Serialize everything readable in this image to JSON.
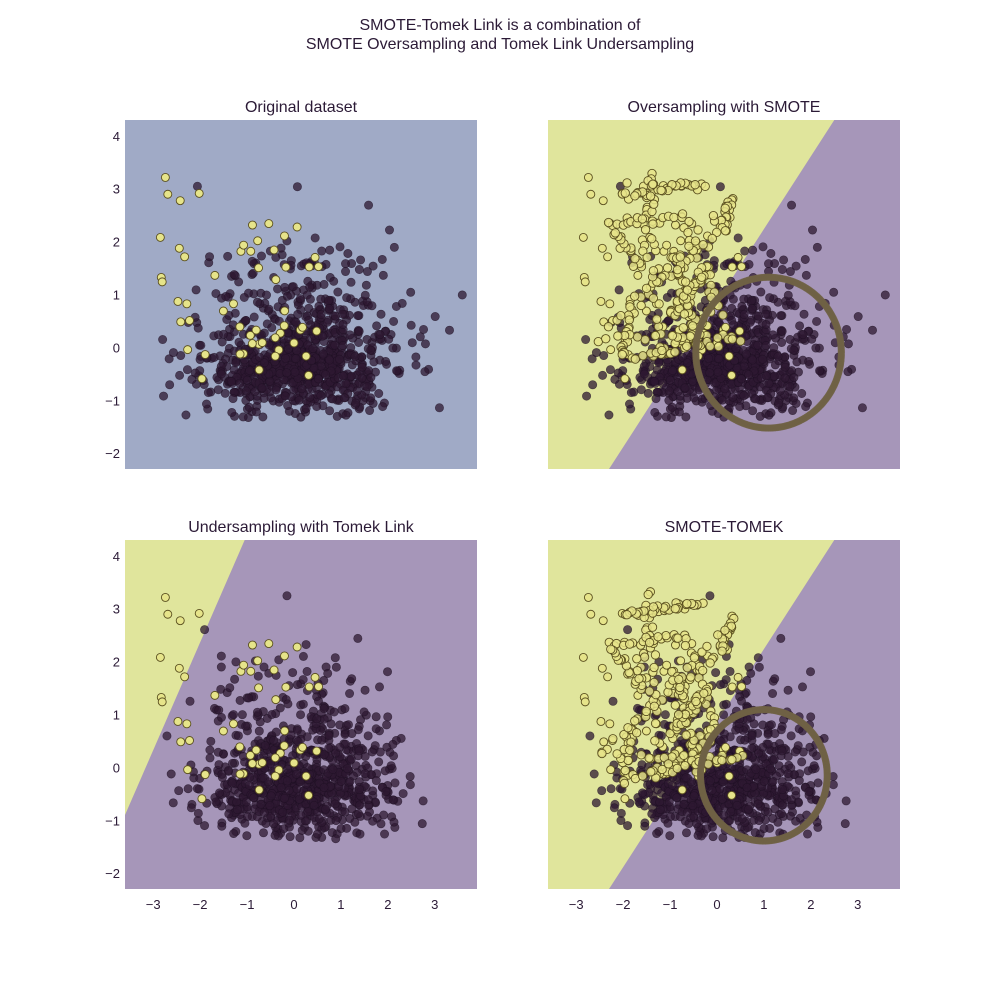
{
  "figure": {
    "title_line1": "SMOTE-Tomek Link is a combination of",
    "title_line2": "SMOTE Oversampling and Tomek Link Undersampling"
  },
  "colors": {
    "class_majority": "#2e1832",
    "class_minority": "#e6e48a",
    "region_single": "#a0aac6",
    "region_majority": "#a696b9",
    "region_minority": "#e0e59c",
    "circle": "#6f6245"
  },
  "chart_data": [
    {
      "type": "scatter",
      "title": "Original dataset",
      "xlim": [
        -3.6,
        3.9
      ],
      "ylim": [
        -2.3,
        4.3
      ],
      "xticks": [
        "−3",
        "−2",
        "−1",
        "0",
        "1",
        "2",
        "3"
      ],
      "yticks": [
        "−2",
        "−1",
        "0",
        "1",
        "2",
        "3",
        "4"
      ],
      "show_x_ticks": false,
      "show_y_ticks": true,
      "grid": false,
      "decision_boundary": null,
      "majority_cloud": {
        "center": [
          0.1,
          -0.4
        ],
        "spread": [
          1.0,
          0.75
        ],
        "count": 900
      },
      "minority_points": {
        "region": [
          -3.0,
          0.6,
          -0.6,
          3.4
        ],
        "count": 55
      },
      "synthetic_loops": false,
      "circle": null
    },
    {
      "type": "scatter",
      "title": "Oversampling with SMOTE",
      "xlim": [
        -3.6,
        3.9
      ],
      "ylim": [
        -2.3,
        4.3
      ],
      "xticks": [
        "−3",
        "−2",
        "−1",
        "0",
        "1",
        "2",
        "3"
      ],
      "yticks": [
        "−2",
        "−1",
        "0",
        "1",
        "2",
        "3",
        "4"
      ],
      "show_x_ticks": false,
      "show_y_ticks": false,
      "grid": false,
      "decision_boundary": {
        "p1": [
          -2.3,
          -2.3
        ],
        "p2": [
          2.5,
          4.3
        ]
      },
      "majority_cloud": {
        "center": [
          0.1,
          -0.4
        ],
        "spread": [
          1.0,
          0.75
        ],
        "count": 900
      },
      "minority_points": {
        "region": [
          -3.0,
          0.6,
          -0.6,
          3.4
        ],
        "count": 55
      },
      "synthetic_loops": true,
      "circle": {
        "center": [
          1.1,
          -0.1
        ],
        "radius": 1.55
      }
    },
    {
      "type": "scatter",
      "title": "Undersampling with Tomek Link",
      "xlim": [
        -3.6,
        3.9
      ],
      "ylim": [
        -2.3,
        4.3
      ],
      "xticks": [
        "−3",
        "−2",
        "−1",
        "0",
        "1",
        "2",
        "3"
      ],
      "yticks": [
        "−2",
        "−1",
        "0",
        "1",
        "2",
        "3",
        "4"
      ],
      "show_x_ticks": true,
      "show_y_ticks": true,
      "grid": false,
      "decision_boundary": {
        "p1": [
          -3.6,
          -0.9
        ],
        "p2": [
          -1.05,
          4.3
        ]
      },
      "majority_cloud": {
        "center": [
          0.1,
          -0.4
        ],
        "spread": [
          1.0,
          0.75
        ],
        "count": 880
      },
      "minority_points": {
        "region": [
          -3.0,
          0.6,
          -0.6,
          3.4
        ],
        "count": 55
      },
      "synthetic_loops": false,
      "circle": null
    },
    {
      "type": "scatter",
      "title": "SMOTE-TOMEK",
      "xlim": [
        -3.6,
        3.9
      ],
      "ylim": [
        -2.3,
        4.3
      ],
      "xticks": [
        "−3",
        "−2",
        "−1",
        "0",
        "1",
        "2",
        "3"
      ],
      "yticks": [
        "−2",
        "−1",
        "0",
        "1",
        "2",
        "3",
        "4"
      ],
      "show_x_ticks": true,
      "show_y_ticks": false,
      "grid": false,
      "decision_boundary": {
        "p1": [
          -2.3,
          -2.3
        ],
        "p2": [
          2.5,
          4.3
        ]
      },
      "majority_cloud": {
        "center": [
          0.1,
          -0.4
        ],
        "spread": [
          1.0,
          0.75
        ],
        "count": 880
      },
      "minority_points": {
        "region": [
          -3.0,
          0.6,
          -0.6,
          3.4
        ],
        "count": 55
      },
      "synthetic_loops": true,
      "circle": {
        "center": [
          1.0,
          -0.15
        ],
        "radius": 1.35
      }
    }
  ]
}
